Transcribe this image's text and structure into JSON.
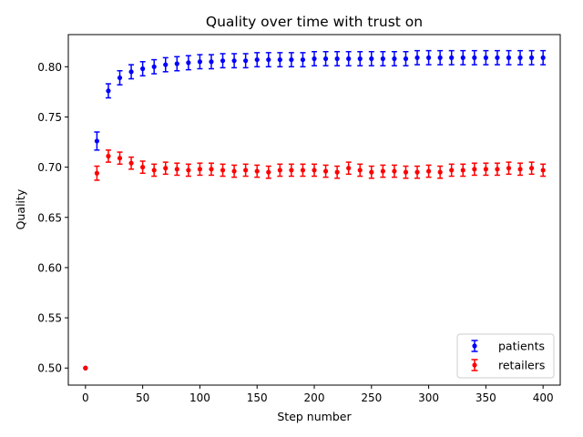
{
  "chart_data": {
    "type": "scatter",
    "title": "Quality over time with trust on",
    "xlabel": "Step number",
    "ylabel": "Quality",
    "xlim": [
      -15,
      415
    ],
    "ylim": [
      0.483,
      0.832
    ],
    "xticks": [
      0,
      50,
      100,
      150,
      200,
      250,
      300,
      350,
      400
    ],
    "yticks": [
      0.5,
      0.55,
      0.6,
      0.65,
      0.7,
      0.75,
      0.8
    ],
    "xtick_labels": [
      "0",
      "50",
      "100",
      "150",
      "200",
      "250",
      "300",
      "350",
      "400"
    ],
    "ytick_labels": [
      "0.50",
      "0.55",
      "0.60",
      "0.65",
      "0.70",
      "0.75",
      "0.80"
    ],
    "grid": false,
    "legend_position": "lower-right",
    "series": [
      {
        "name": "patients",
        "color": "#0000ff",
        "marker": "circle",
        "x": [
          0,
          10,
          20,
          30,
          40,
          50,
          60,
          70,
          80,
          90,
          100,
          110,
          120,
          130,
          140,
          150,
          160,
          170,
          180,
          190,
          200,
          210,
          220,
          230,
          240,
          250,
          260,
          270,
          280,
          290,
          300,
          310,
          320,
          330,
          340,
          350,
          360,
          370,
          380,
          390,
          400
        ],
        "y": [
          0.5,
          0.726,
          0.776,
          0.789,
          0.795,
          0.798,
          0.8,
          0.802,
          0.803,
          0.804,
          0.805,
          0.805,
          0.806,
          0.806,
          0.806,
          0.807,
          0.807,
          0.807,
          0.807,
          0.807,
          0.808,
          0.808,
          0.808,
          0.808,
          0.808,
          0.808,
          0.808,
          0.808,
          0.808,
          0.809,
          0.809,
          0.809,
          0.809,
          0.809,
          0.809,
          0.809,
          0.809,
          0.809,
          0.809,
          0.809,
          0.809
        ],
        "err": [
          0,
          0.009,
          0.007,
          0.007,
          0.007,
          0.007,
          0.007,
          0.007,
          0.007,
          0.007,
          0.007,
          0.007,
          0.007,
          0.007,
          0.007,
          0.007,
          0.007,
          0.007,
          0.007,
          0.007,
          0.007,
          0.007,
          0.007,
          0.007,
          0.007,
          0.007,
          0.007,
          0.007,
          0.007,
          0.007,
          0.007,
          0.007,
          0.007,
          0.007,
          0.007,
          0.007,
          0.007,
          0.007,
          0.007,
          0.007,
          0.007
        ]
      },
      {
        "name": "retailers",
        "color": "#ff0000",
        "marker": "circle",
        "x": [
          0,
          10,
          20,
          30,
          40,
          50,
          60,
          70,
          80,
          90,
          100,
          110,
          120,
          130,
          140,
          150,
          160,
          170,
          180,
          190,
          200,
          210,
          220,
          230,
          240,
          250,
          260,
          270,
          280,
          290,
          300,
          310,
          320,
          330,
          340,
          350,
          360,
          370,
          380,
          390,
          400
        ],
        "y": [
          0.5,
          0.694,
          0.711,
          0.709,
          0.704,
          0.7,
          0.697,
          0.699,
          0.698,
          0.697,
          0.698,
          0.698,
          0.697,
          0.696,
          0.697,
          0.696,
          0.695,
          0.697,
          0.697,
          0.697,
          0.697,
          0.696,
          0.695,
          0.699,
          0.697,
          0.695,
          0.696,
          0.696,
          0.695,
          0.695,
          0.696,
          0.695,
          0.697,
          0.697,
          0.698,
          0.698,
          0.698,
          0.699,
          0.698,
          0.699,
          0.697
        ],
        "err": [
          0,
          0.007,
          0.006,
          0.006,
          0.006,
          0.006,
          0.006,
          0.006,
          0.006,
          0.006,
          0.006,
          0.006,
          0.006,
          0.006,
          0.006,
          0.006,
          0.006,
          0.006,
          0.006,
          0.006,
          0.006,
          0.006,
          0.006,
          0.006,
          0.006,
          0.006,
          0.006,
          0.006,
          0.006,
          0.006,
          0.006,
          0.006,
          0.006,
          0.006,
          0.006,
          0.006,
          0.006,
          0.006,
          0.006,
          0.006,
          0.006
        ]
      }
    ]
  }
}
